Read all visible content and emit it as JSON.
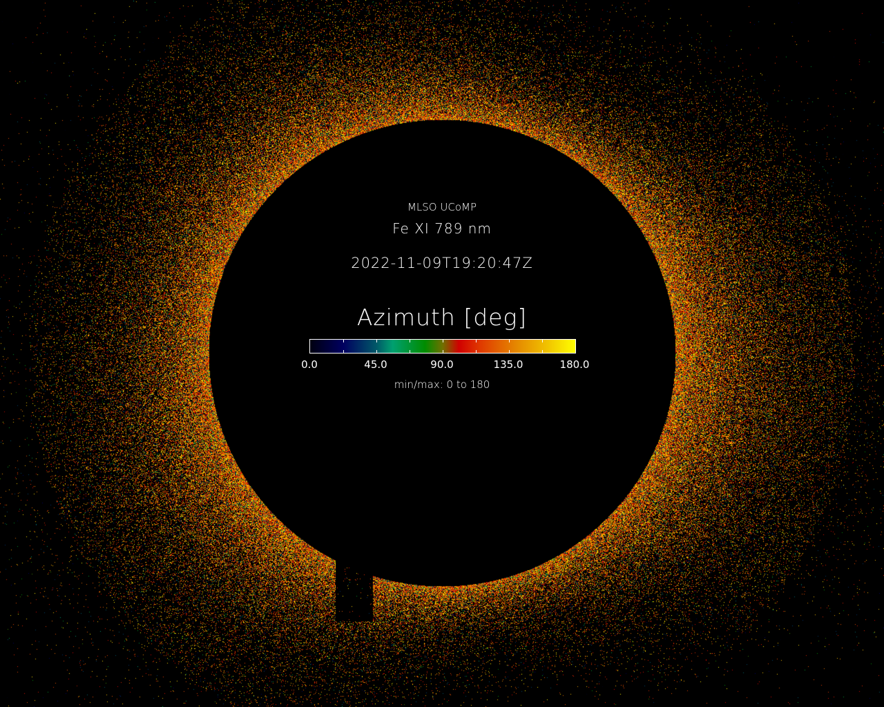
{
  "title": {
    "observatory": "MLSO UCoMP",
    "line": "Fe XI 789 nm",
    "timestamp": "2022-11-09T19:20:47Z"
  },
  "colorbar": {
    "label": "Azimuth [deg]",
    "tick_labels": [
      "0.0",
      "45.0",
      "90.0",
      "135.0",
      "180.0"
    ],
    "range_text": "min/max: 0 to 180",
    "min": 0,
    "max": 180,
    "colormap": [
      {
        "value": 0,
        "color": "#000010"
      },
      {
        "value": 22.5,
        "color": "#000060"
      },
      {
        "value": 45,
        "color": "#005868"
      },
      {
        "value": 56,
        "color": "#00a070"
      },
      {
        "value": 78,
        "color": "#008c00"
      },
      {
        "value": 90,
        "color": "#707000"
      },
      {
        "value": 101,
        "color": "#d00000"
      },
      {
        "value": 115,
        "color": "#e03800"
      },
      {
        "value": 140,
        "color": "#e58800"
      },
      {
        "value": 160,
        "color": "#f0c000"
      },
      {
        "value": 180,
        "color": "#ffff00"
      }
    ]
  },
  "background_color": "#000000"
}
